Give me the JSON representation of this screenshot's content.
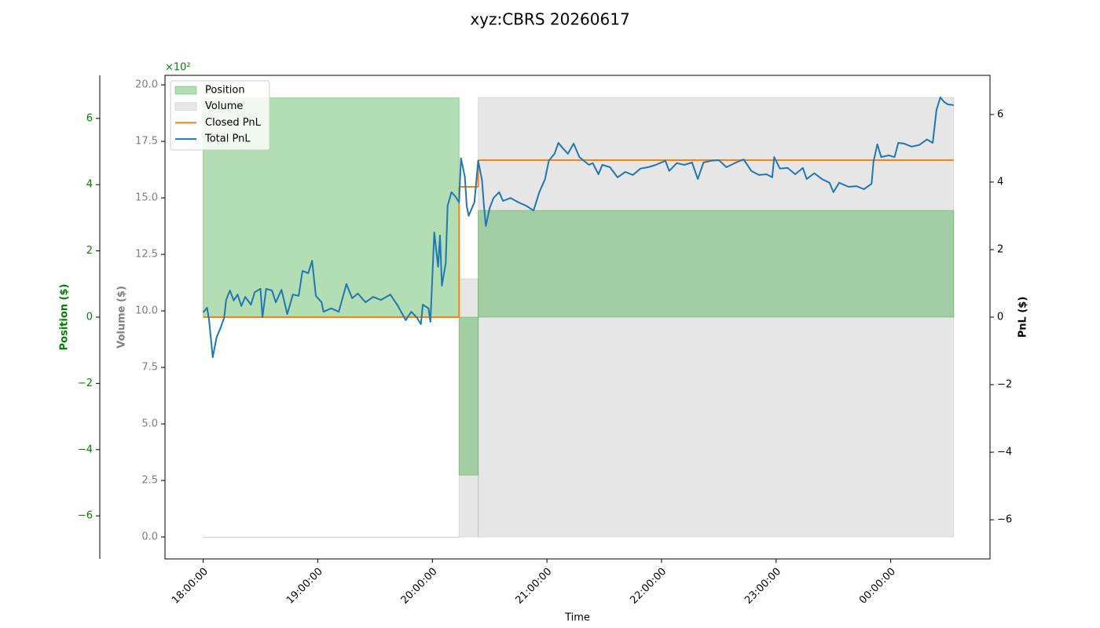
{
  "chart_data": {
    "type": "line",
    "title": "xyz:CBRS 20260617",
    "x_label": "Time",
    "xlim": [
      "17:40:00",
      "00:52:00"
    ],
    "xticks": [
      "18:00:00",
      "19:00:00",
      "20:00:00",
      "21:00:00",
      "22:00:00",
      "23:00:00",
      "00:00:00"
    ],
    "legend": "upper left",
    "axes": {
      "position": {
        "label": "Position ($)",
        "side": "left-outer",
        "color": "#008000",
        "offset": "×10²",
        "lim": [
          -730,
          730
        ],
        "ticks": [
          {
            "value": -600,
            "label": "−6"
          },
          {
            "value": -400,
            "label": "−4"
          },
          {
            "value": -200,
            "label": "−2"
          },
          0,
          {
            "value": 200,
            "label": "2"
          },
          {
            "value": 400,
            "label": "4"
          },
          {
            "value": 600,
            "label": "6"
          }
        ]
      },
      "volume": {
        "label": "Volume ($)",
        "side": "left",
        "color": "#808080",
        "lim": [
          -0.97,
          20.42
        ],
        "ticks": [
          {
            "value": 0,
            "label": "0.0"
          },
          2.5,
          {
            "value": 5,
            "label": "5.0"
          },
          7.5,
          {
            "value": 10,
            "label": "10.0"
          },
          12.5,
          {
            "value": 15,
            "label": "15.0"
          },
          17.5,
          {
            "value": 20,
            "label": "20.0"
          }
        ]
      },
      "pnl": {
        "label": "PnL ($)",
        "side": "right",
        "color": "#000000",
        "lim": [
          -7.16,
          7.16
        ],
        "ticks": [
          {
            "value": -6,
            "label": "−6"
          },
          {
            "value": -4,
            "label": "−4"
          },
          {
            "value": -2,
            "label": "−2"
          },
          0,
          2,
          4,
          6
        ]
      }
    },
    "series": [
      {
        "name": "Position",
        "kind": "step-fill",
        "axis": "position",
        "color": "#2ca02c",
        "bins": [
          "18:00",
          "20:14",
          "20:24",
          "00:33"
        ],
        "values": [
          662,
          -477,
          322
        ]
      },
      {
        "name": "Volume",
        "kind": "step-fill",
        "axis": "volume",
        "color": "#808080",
        "bins": [
          "18:00",
          "20:14",
          "20:24",
          "00:33"
        ],
        "values": [
          0,
          11.42,
          19.44
        ]
      },
      {
        "name": "Closed PnL",
        "kind": "step-line",
        "axis": "pnl",
        "color": "#ff7f0e",
        "bins": [
          "18:00",
          "20:14",
          "20:24",
          "00:33"
        ],
        "values": [
          0,
          3.86,
          4.65
        ]
      },
      {
        "name": "Total PnL",
        "kind": "line",
        "axis": "pnl",
        "color": "#1f77b4",
        "x": [
          "18:00",
          "18:02",
          "18:03",
          "18:05",
          "18:07",
          "18:09",
          "18:11",
          "18:12",
          "18:14",
          "18:16",
          "18:18",
          "18:20",
          "18:22",
          "18:25",
          "18:27",
          "18:30",
          "18:31",
          "18:33",
          "18:36",
          "18:38",
          "18:41",
          "18:44",
          "18:47",
          "18:50",
          "18:52",
          "18:55",
          "18:57",
          "18:59",
          "19:02",
          "19:03",
          "19:07",
          "19:11",
          "19:15",
          "19:18",
          "19:21",
          "19:25",
          "19:29",
          "19:33",
          "19:38",
          "19:42",
          "19:46",
          "19:49",
          "19:52",
          "19:54",
          "19:55",
          "19:58",
          "19:59",
          "20:01",
          "20:03",
          "20:04",
          "20:05",
          "20:07",
          "20:08",
          "20:10",
          "20:12",
          "20:14",
          "20:15",
          "20:17",
          "20:18",
          "20:19",
          "20:22",
          "20:24",
          "20:26",
          "20:27",
          "20:28",
          "20:30",
          "20:32",
          "20:35",
          "20:37",
          "20:41",
          "20:45",
          "20:49",
          "20:53",
          "20:56",
          "20:59",
          "21:01",
          "21:04",
          "21:06",
          "21:08",
          "21:11",
          "21:14",
          "21:17",
          "21:22",
          "21:24",
          "21:27",
          "21:29",
          "21:33",
          "21:37",
          "21:41",
          "21:45",
          "21:49",
          "21:53",
          "21:57",
          "22:02",
          "22:04",
          "22:08",
          "22:12",
          "22:16",
          "22:19",
          "22:22",
          "22:26",
          "22:30",
          "22:34",
          "22:39",
          "22:43",
          "22:47",
          "22:51",
          "22:55",
          "22:58",
          "22:59",
          "23:02",
          "23:06",
          "23:10",
          "23:14",
          "23:16",
          "23:20",
          "23:24",
          "23:28",
          "23:30",
          "23:33",
          "23:38",
          "23:42",
          "23:46",
          "23:50",
          "23:51",
          "23:53",
          "23:55",
          "23:59",
          "00:02",
          "00:04",
          "00:07",
          "00:11",
          "00:15",
          "00:19",
          "00:22",
          "00:24",
          "00:26",
          "00:28",
          "00:30",
          "00:33"
        ],
        "values": [
          0.14,
          0.28,
          -0.05,
          -1.19,
          -0.6,
          -0.33,
          -0.02,
          0.51,
          0.79,
          0.49,
          0.67,
          0.33,
          0.6,
          0.37,
          0.74,
          0.84,
          0,
          0.84,
          0.79,
          0.44,
          0.81,
          0.09,
          0.67,
          0.63,
          1.37,
          1.3,
          1.67,
          0.63,
          0.44,
          0.16,
          0.26,
          0.16,
          0.98,
          0.56,
          0.7,
          0.44,
          0.6,
          0.51,
          0.67,
          0.33,
          -0.09,
          0.16,
          -0.02,
          -0.21,
          0.37,
          0.26,
          -0.14,
          2.51,
          1.49,
          2.42,
          0.93,
          1.6,
          3.3,
          3.7,
          3.58,
          3.4,
          4.7,
          4.16,
          3.3,
          3.0,
          3.4,
          4.63,
          4.05,
          3.3,
          2.7,
          3.23,
          3.53,
          3.7,
          3.44,
          3.53,
          3.4,
          3.3,
          3.16,
          3.7,
          4.09,
          4.63,
          4.84,
          5.16,
          5.02,
          4.84,
          5.14,
          4.74,
          4.51,
          4.56,
          4.23,
          4.51,
          4.44,
          4.14,
          4.3,
          4.21,
          4.4,
          4.44,
          4.51,
          4.63,
          4.33,
          4.56,
          4.51,
          4.58,
          4.09,
          4.58,
          4.63,
          4.65,
          4.44,
          4.58,
          4.67,
          4.33,
          4.21,
          4.23,
          4.14,
          4.74,
          4.4,
          4.42,
          4.23,
          4.42,
          4.09,
          4.26,
          4.09,
          3.98,
          3.7,
          3.98,
          3.86,
          3.88,
          3.79,
          3.95,
          4.6,
          5.12,
          4.74,
          4.79,
          4.74,
          5.16,
          5.14,
          5.05,
          5.1,
          5.26,
          5.16,
          6.14,
          6.51,
          6.37,
          6.3,
          6.28
        ]
      }
    ]
  }
}
